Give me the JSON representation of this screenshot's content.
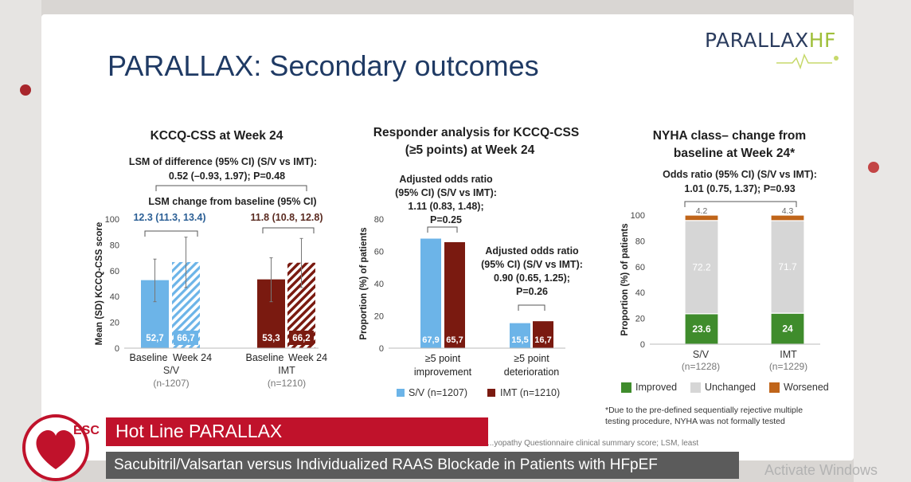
{
  "slide_title": "PARALLAX: Secondary outcomes",
  "logo": {
    "main": "PARALLAX",
    "suffix": "HF"
  },
  "panel1": {
    "title": "KCCQ-CSS at Week 24",
    "stat_line1": "LSM of difference (95% CI) (S/V vs IMT):",
    "stat_line2": "0.52 (–0.93, 1.97); P=0.48",
    "lsm_label": "LSM change from baseline (95% CI)",
    "sv_lsm": "12.3 (11.3, 13.4)",
    "imt_lsm": "11.8 (10.8, 12.8)",
    "group1": "S/V",
    "group1_n": "(n-1207)",
    "group2": "IMT",
    "group2_n": "(n=1210)"
  },
  "panel2": {
    "title_line1": "Responder analysis for KCCQ-CSS",
    "title_line2": "(≥5 points) at Week 24",
    "or1": [
      "Adjusted odds ratio",
      "(95% CI) (S/V vs IMT):",
      "1.11 (0.83, 1.48);",
      "P=0.25"
    ],
    "or2": [
      "Adjusted odds ratio",
      "(95% CI) (S/V vs IMT):",
      "0.90 (0.65, 1.25);",
      "P=0.26"
    ],
    "legend_sv": "S/V (n=1207)",
    "legend_imt": "IMT (n=1210)"
  },
  "panel3": {
    "title_line1": "NYHA class– change from",
    "title_line2": "baseline at Week 24*",
    "or_line1": "Odds ratio (95% CI) (S/V vs IMT):",
    "or_line2": "1.01 (0.75, 1.37); P=0.93",
    "group1": "S/V",
    "group1_n": "(n=1228)",
    "group2": "IMT",
    "group2_n": "(n=1229)",
    "legend": [
      "Improved",
      "Unchanged",
      "Worsened"
    ],
    "footnote_line1": "*Due to the pre-defined sequentially rejective multiple",
    "footnote_line2": "testing procedure, NYHA was not formally tested"
  },
  "bottom_footnote": "...yopathy Questionnaire clinical summary score; LSM, least",
  "hotline": "Hot Line PARALLAX",
  "subtitle": "Sacubitril/Valsartan versus Individualized RAAS Blockade in Patients with HFpEF",
  "watermark": "Activate Windows",
  "esc_text": "ESC",
  "colors": {
    "sv_blue": "#6cb4e8",
    "imt_red": "#7a1a10",
    "improved": "#3f8c2c",
    "unchanged": "#d6d6d6",
    "worsened": "#c0651a",
    "title_blue": "#1f3a64",
    "hotline_red": "#c0122b"
  },
  "chart_data": [
    {
      "type": "bar",
      "title": "KCCQ-CSS at Week 24",
      "ylabel": "Mean (SD) KCCQ-CSS score",
      "ylim": [
        0,
        100
      ],
      "yticks": [
        0,
        20,
        40,
        60,
        80,
        100
      ],
      "categories": [
        "Baseline",
        "Week 24",
        "Baseline",
        "Week 24"
      ],
      "groups": [
        "S/V",
        "S/V",
        "IMT",
        "IMT"
      ],
      "values": [
        52.7,
        66.7,
        53.3,
        66.2
      ],
      "value_labels": [
        "52,7",
        "66,7",
        "53,3",
        "66,2"
      ],
      "sd_upper": [
        69,
        86,
        70,
        85
      ],
      "sd_lower": [
        36,
        47,
        36,
        47
      ]
    },
    {
      "type": "bar",
      "title": "Responder analysis for KCCQ-CSS (≥5 points) at Week 24",
      "ylabel": "Proportion (%) of patients",
      "ylim": [
        0,
        80
      ],
      "yticks": [
        0,
        20,
        40,
        60,
        80
      ],
      "categories": [
        [
          "≥5 point",
          "improvement"
        ],
        [
          "≥5 point",
          "deterioration"
        ]
      ],
      "series": [
        {
          "name": "S/V (n=1207)",
          "values": [
            67.9,
            15.5
          ],
          "labels": [
            "67,9",
            "15,5"
          ]
        },
        {
          "name": "IMT (n=1210)",
          "values": [
            65.7,
            16.7
          ],
          "labels": [
            "65,7",
            "16,7"
          ]
        }
      ]
    },
    {
      "type": "bar",
      "stacked": true,
      "title": "NYHA class– change from baseline at Week 24*",
      "ylabel": "Proportion (%) of patients",
      "ylim": [
        0,
        100
      ],
      "yticks": [
        0,
        20,
        40,
        60,
        80,
        100
      ],
      "categories": [
        "S/V",
        "IMT"
      ],
      "series": [
        {
          "name": "Improved",
          "values": [
            23.6,
            24
          ],
          "labels": [
            "23.6",
            "24"
          ]
        },
        {
          "name": "Unchanged",
          "values": [
            72.2,
            71.7
          ],
          "labels": [
            "72.2",
            "71.7"
          ]
        },
        {
          "name": "Worsened",
          "values": [
            4.2,
            4.3
          ],
          "labels": [
            "4.2",
            "4.3"
          ]
        }
      ]
    }
  ]
}
